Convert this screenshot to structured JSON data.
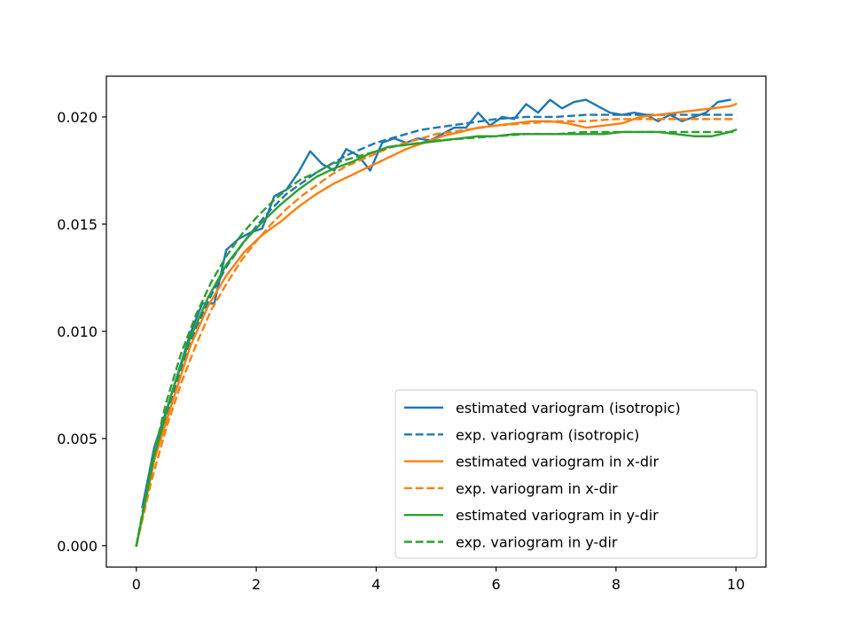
{
  "chart_data": {
    "type": "line",
    "title": "",
    "xlabel": "",
    "ylabel": "",
    "xlim": [
      -0.5,
      10.5
    ],
    "ylim": [
      -0.001,
      0.0219
    ],
    "xticks": [
      0,
      2,
      4,
      6,
      8,
      10
    ],
    "xtick_labels": [
      "0",
      "2",
      "4",
      "6",
      "8",
      "10"
    ],
    "yticks": [
      0.0,
      0.005,
      0.01,
      0.015,
      0.02
    ],
    "ytick_labels": [
      "0.000",
      "0.005",
      "0.010",
      "0.015",
      "0.020"
    ],
    "grid": false,
    "legend_position": "lower right",
    "series": [
      {
        "name": "estimated variogram (isotropic)",
        "color": "#1f77b4",
        "style": "solid",
        "x": [
          0.1,
          0.3,
          0.5,
          0.7,
          0.9,
          1.1,
          1.3,
          1.5,
          1.7,
          1.9,
          2.1,
          2.3,
          2.5,
          2.7,
          2.9,
          3.1,
          3.3,
          3.5,
          3.7,
          3.9,
          4.1,
          4.3,
          4.5,
          4.7,
          4.9,
          5.1,
          5.3,
          5.5,
          5.7,
          5.9,
          6.1,
          6.3,
          6.5,
          6.7,
          6.9,
          7.1,
          7.3,
          7.5,
          7.7,
          7.9,
          8.1,
          8.3,
          8.5,
          8.7,
          8.9,
          9.1,
          9.3,
          9.5,
          9.7,
          9.9
        ],
        "y": [
          0.0018,
          0.0046,
          0.0063,
          0.0081,
          0.0099,
          0.0113,
          0.0113,
          0.0138,
          0.0143,
          0.0146,
          0.0148,
          0.0163,
          0.0166,
          0.0174,
          0.0184,
          0.0178,
          0.0175,
          0.0185,
          0.0182,
          0.0175,
          0.0188,
          0.019,
          0.0188,
          0.019,
          0.0189,
          0.0192,
          0.0195,
          0.0195,
          0.0202,
          0.0196,
          0.02,
          0.0199,
          0.0206,
          0.0202,
          0.0208,
          0.0204,
          0.0207,
          0.0208,
          0.0205,
          0.0202,
          0.0201,
          0.0202,
          0.0201,
          0.0198,
          0.0201,
          0.0198,
          0.02,
          0.0202,
          0.0207,
          0.0208
        ]
      },
      {
        "name": "exp. variogram (isotropic)",
        "color": "#1f77b4",
        "style": "dashed",
        "x": [
          0,
          0.25,
          0.5,
          0.75,
          1,
          1.25,
          1.5,
          1.75,
          2,
          2.25,
          2.5,
          2.75,
          3,
          3.25,
          3.5,
          3.75,
          4,
          4.25,
          4.5,
          4.75,
          5,
          5.5,
          6,
          6.5,
          7,
          7.5,
          8,
          8.5,
          9,
          9.5,
          10
        ],
        "y": [
          0.0,
          0.0035,
          0.0061,
          0.0083,
          0.0102,
          0.0117,
          0.013,
          0.014,
          0.0149,
          0.0157,
          0.0164,
          0.0169,
          0.0174,
          0.0178,
          0.0182,
          0.0185,
          0.0188,
          0.019,
          0.0192,
          0.0194,
          0.0195,
          0.0197,
          0.0199,
          0.02,
          0.02,
          0.0201,
          0.0201,
          0.0201,
          0.0201,
          0.0201,
          0.0201
        ]
      },
      {
        "name": "estimated variogram in x-dir",
        "color": "#ff7f0e",
        "style": "solid",
        "x": [
          0,
          0.3,
          0.6,
          0.9,
          1.2,
          1.5,
          1.8,
          2.1,
          2.4,
          2.7,
          3.0,
          3.3,
          3.6,
          3.9,
          4.2,
          4.5,
          4.8,
          5.1,
          5.4,
          5.7,
          6.0,
          6.3,
          6.6,
          6.9,
          7.2,
          7.5,
          7.8,
          8.1,
          8.4,
          8.7,
          9.0,
          9.3,
          9.6,
          9.9,
          10.0
        ],
        "y": [
          0.0,
          0.004,
          0.0067,
          0.0093,
          0.0112,
          0.0126,
          0.0137,
          0.0145,
          0.0151,
          0.0158,
          0.0164,
          0.0169,
          0.0173,
          0.0177,
          0.0181,
          0.0185,
          0.0188,
          0.0191,
          0.0193,
          0.0195,
          0.0196,
          0.0197,
          0.0198,
          0.0198,
          0.0197,
          0.0195,
          0.0196,
          0.0197,
          0.02,
          0.0201,
          0.0202,
          0.0203,
          0.0204,
          0.0205,
          0.0206
        ]
      },
      {
        "name": "exp. variogram in x-dir",
        "color": "#ff7f0e",
        "style": "dashed",
        "x": [
          0,
          0.25,
          0.5,
          0.75,
          1,
          1.25,
          1.5,
          1.75,
          2,
          2.25,
          2.5,
          2.75,
          3,
          3.25,
          3.5,
          3.75,
          4,
          4.25,
          4.5,
          4.75,
          5,
          5.5,
          6,
          6.5,
          7,
          7.5,
          8,
          8.5,
          9,
          9.5,
          10
        ],
        "y": [
          0.0,
          0.003,
          0.0055,
          0.0076,
          0.0094,
          0.011,
          0.0122,
          0.0133,
          0.0142,
          0.015,
          0.0157,
          0.0163,
          0.0168,
          0.0173,
          0.0177,
          0.018,
          0.0183,
          0.0186,
          0.0188,
          0.019,
          0.0192,
          0.0194,
          0.0196,
          0.0197,
          0.0198,
          0.0198,
          0.0199,
          0.0199,
          0.0199,
          0.0199,
          0.0199
        ]
      },
      {
        "name": "estimated variogram in y-dir",
        "color": "#2ca02c",
        "style": "solid",
        "x": [
          0,
          0.3,
          0.6,
          0.9,
          1.2,
          1.5,
          1.8,
          2.1,
          2.4,
          2.7,
          3.0,
          3.3,
          3.6,
          3.9,
          4.2,
          4.5,
          4.8,
          5.1,
          5.4,
          5.7,
          6.0,
          6.3,
          6.6,
          6.9,
          7.2,
          7.5,
          7.8,
          8.1,
          8.4,
          8.7,
          9.0,
          9.3,
          9.6,
          9.9,
          10.0
        ],
        "y": [
          0.0,
          0.0042,
          0.0072,
          0.0097,
          0.0116,
          0.0131,
          0.0142,
          0.0151,
          0.0159,
          0.0166,
          0.0172,
          0.0176,
          0.0179,
          0.0183,
          0.0186,
          0.0187,
          0.0188,
          0.0189,
          0.019,
          0.0191,
          0.0191,
          0.0192,
          0.0192,
          0.0192,
          0.0192,
          0.0192,
          0.0192,
          0.0193,
          0.0193,
          0.0193,
          0.0192,
          0.0191,
          0.0191,
          0.0193,
          0.0194
        ]
      },
      {
        "name": "exp. variogram in y-dir",
        "color": "#2ca02c",
        "style": "dashed",
        "x": [
          0,
          0.25,
          0.5,
          0.75,
          1,
          1.25,
          1.5,
          1.75,
          2,
          2.25,
          2.5,
          2.75,
          3,
          3.25,
          3.5,
          3.75,
          4,
          4.25,
          4.5,
          4.75,
          5,
          5.5,
          6,
          6.5,
          7,
          7.5,
          8,
          8.5,
          9,
          9.5,
          10
        ],
        "y": [
          0.0,
          0.0038,
          0.0067,
          0.009,
          0.0108,
          0.0123,
          0.0135,
          0.0145,
          0.0153,
          0.016,
          0.0166,
          0.0171,
          0.0174,
          0.0178,
          0.018,
          0.0182,
          0.0184,
          0.0186,
          0.0187,
          0.0188,
          0.0189,
          0.019,
          0.0191,
          0.0192,
          0.0192,
          0.0193,
          0.0193,
          0.0193,
          0.0193,
          0.0193,
          0.0193
        ]
      }
    ]
  }
}
